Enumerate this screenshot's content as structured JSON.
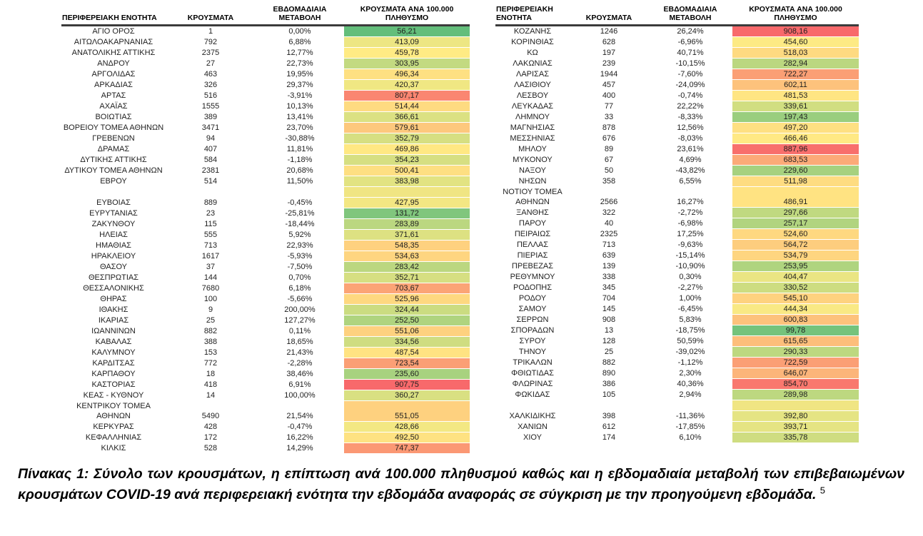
{
  "color_scale": {
    "min_value": 56.21,
    "mid_value": 459.78,
    "max_value": 908.16,
    "min_color": "#63BE7B",
    "mid_color": "#FFEB84",
    "max_color": "#F8696B",
    "blank_color": "#F0E583"
  },
  "left_table": {
    "headers": [
      "ΠΕΡΙΦΕΡΕΙΑΚΗ ΕΝΟΤΗΤΑ",
      "ΚΡΟΥΣΜΑΤΑ",
      "ΕΒΔΟΜΑΔΙΑΙΑ ΜΕΤΑΒΟΛΗ",
      "ΚΡΟΥΣΜΑΤΑ ΑΝΑ 100.000 ΠΛΗΘΥΣΜΟ"
    ],
    "rows": [
      {
        "name": "ΑΓΙΟ ΟΡΟΣ",
        "cases": "1",
        "change": "0,00%",
        "per100k": "56,21",
        "value": 56.21
      },
      {
        "name": "ΑΙΤΩΛΟΑΚΑΡΝΑΝΙΑΣ",
        "cases": "792",
        "change": "6,88%",
        "per100k": "413,09",
        "value": 413.09
      },
      {
        "name": "ΑΝΑΤΟΛΙΚΗΣ ΑΤΤΙΚΗΣ",
        "cases": "2375",
        "change": "12,77%",
        "per100k": "459,78",
        "value": 459.78
      },
      {
        "name": "ΑΝΔΡΟΥ",
        "cases": "27",
        "change": "22,73%",
        "per100k": "303,95",
        "value": 303.95
      },
      {
        "name": "ΑΡΓΟΛΙΔΑΣ",
        "cases": "463",
        "change": "19,95%",
        "per100k": "496,34",
        "value": 496.34
      },
      {
        "name": "ΑΡΚΑΔΙΑΣ",
        "cases": "326",
        "change": "29,37%",
        "per100k": "420,37",
        "value": 420.37
      },
      {
        "name": "ΑΡΤΑΣ",
        "cases": "516",
        "change": "-3,91%",
        "per100k": "807,17",
        "value": 807.17
      },
      {
        "name": "ΑΧΑΪΑΣ",
        "cases": "1555",
        "change": "10,13%",
        "per100k": "514,44",
        "value": 514.44
      },
      {
        "name": "ΒΟΙΩΤΙΑΣ",
        "cases": "389",
        "change": "13,41%",
        "per100k": "366,61",
        "value": 366.61
      },
      {
        "name": "ΒΟΡΕΙΟΥ ΤΟΜΕΑ ΑΘΗΝΩΝ",
        "cases": "3471",
        "change": "23,70%",
        "per100k": "579,61",
        "value": 579.61
      },
      {
        "name": "ΓΡΕΒΕΝΩΝ",
        "cases": "94",
        "change": "-30,88%",
        "per100k": "352,79",
        "value": 352.79
      },
      {
        "name": "ΔΡΑΜΑΣ",
        "cases": "407",
        "change": "11,81%",
        "per100k": "469,86",
        "value": 469.86
      },
      {
        "name": "ΔΥΤΙΚΗΣ ΑΤΤΙΚΗΣ",
        "cases": "584",
        "change": "-1,18%",
        "per100k": "354,23",
        "value": 354.23
      },
      {
        "name": "ΔΥΤΙΚΟΥ ΤΟΜΕΑ ΑΘΗΝΩΝ",
        "cases": "2381",
        "change": "20,68%",
        "per100k": "500,41",
        "value": 500.41
      },
      {
        "name": "ΕΒΡΟΥ",
        "cases": "514",
        "change": "11,50%",
        "per100k": "383,98",
        "value": 383.98
      },
      {
        "type": "blank"
      },
      {
        "name": "ΕΥΒΟΙΑΣ",
        "cases": "889",
        "change": "-0,45%",
        "per100k": "427,95",
        "value": 427.95
      },
      {
        "name": "ΕΥΡΥΤΑΝΙΑΣ",
        "cases": "23",
        "change": "-25,81%",
        "per100k": "131,72",
        "value": 131.72
      },
      {
        "name": "ΖΑΚΥΝΘΟΥ",
        "cases": "115",
        "change": "-18,44%",
        "per100k": "283,89",
        "value": 283.89
      },
      {
        "name": "ΗΛΕΙΑΣ",
        "cases": "555",
        "change": "5,92%",
        "per100k": "371,61",
        "value": 371.61
      },
      {
        "name": "ΗΜΑΘΙΑΣ",
        "cases": "713",
        "change": "22,93%",
        "per100k": "548,35",
        "value": 548.35
      },
      {
        "name": "ΗΡΑΚΛΕΙΟΥ",
        "cases": "1617",
        "change": "-5,93%",
        "per100k": "534,63",
        "value": 534.63
      },
      {
        "name": "ΘΑΣΟΥ",
        "cases": "37",
        "change": "-7,50%",
        "per100k": "283,42",
        "value": 283.42
      },
      {
        "name": "ΘΕΣΠΡΩΤΙΑΣ",
        "cases": "144",
        "change": "0,70%",
        "per100k": "352,71",
        "value": 352.71
      },
      {
        "name": "ΘΕΣΣΑΛΟΝΙΚΗΣ",
        "cases": "7680",
        "change": "6,18%",
        "per100k": "703,67",
        "value": 703.67
      },
      {
        "name": "ΘΗΡΑΣ",
        "cases": "100",
        "change": "-5,66%",
        "per100k": "525,96",
        "value": 525.96
      },
      {
        "name": "ΙΘΑΚΗΣ",
        "cases": "9",
        "change": "200,00%",
        "per100k": "324,44",
        "value": 324.44
      },
      {
        "name": "ΙΚΑΡΙΑΣ",
        "cases": "25",
        "change": "127,27%",
        "per100k": "252,50",
        "value": 252.5
      },
      {
        "name": "ΙΩΑΝΝΙΝΩΝ",
        "cases": "882",
        "change": "0,11%",
        "per100k": "551,06",
        "value": 551.06
      },
      {
        "name": "ΚΑΒΑΛΑΣ",
        "cases": "388",
        "change": "18,65%",
        "per100k": "334,56",
        "value": 334.56
      },
      {
        "name": "ΚΑΛΥΜΝΟΥ",
        "cases": "153",
        "change": "21,43%",
        "per100k": "487,54",
        "value": 487.54
      },
      {
        "name": "ΚΑΡΔΙΤΣΑΣ",
        "cases": "772",
        "change": "-2,28%",
        "per100k": "723,54",
        "value": 723.54
      },
      {
        "name": "ΚΑΡΠΑΘΟΥ",
        "cases": "18",
        "change": "38,46%",
        "per100k": "235,60",
        "value": 235.6
      },
      {
        "name": "ΚΑΣΤΟΡΙΑΣ",
        "cases": "418",
        "change": "6,91%",
        "per100k": "907,75",
        "value": 907.75
      },
      {
        "name": "ΚΕΑΣ - ΚΥΘΝΟΥ",
        "cases": "14",
        "change": "100,00%",
        "per100k": "360,27",
        "value": 360.27
      },
      {
        "type": "section",
        "name": "ΚΕΝΤΡΙΚΟΥ ΤΟΜΕΑ",
        "merge_value": 551.05
      },
      {
        "name": "ΑΘΗΝΩΝ",
        "cases": "5490",
        "change": "21,54%",
        "per100k": "551,05",
        "value": 551.05
      },
      {
        "name": "ΚΕΡΚΥΡΑΣ",
        "cases": "428",
        "change": "-0,47%",
        "per100k": "428,66",
        "value": 428.66
      },
      {
        "name": "ΚΕΦΑΛΛΗΝΙΑΣ",
        "cases": "172",
        "change": "16,22%",
        "per100k": "492,50",
        "value": 492.5
      },
      {
        "name": "ΚΙΛΚΙΣ",
        "cases": "528",
        "change": "14,29%",
        "per100k": "747,37",
        "value": 747.37
      }
    ]
  },
  "right_table": {
    "headers": [
      "ΠΕΡΙΦΕΡΕΙΑΚΗ ΕΝΟΤΗΤΑ",
      "ΚΡΟΥΣΜΑΤΑ",
      "ΕΒΔΟΜΑΔΙΑΙΑ ΜΕΤΑΒΟΛΗ",
      "ΚΡΟΥΣΜΑΤΑ ΑΝΑ 100.000 ΠΛΗΘΥΣΜΟ"
    ],
    "rows": [
      {
        "name": "ΚΟΖΑΝΗΣ",
        "cases": "1246",
        "change": "26,24%",
        "per100k": "908,16",
        "value": 908.16
      },
      {
        "name": "ΚΟΡΙΝΘΙΑΣ",
        "cases": "628",
        "change": "-6,96%",
        "per100k": "454,60",
        "value": 454.6
      },
      {
        "name": "ΚΩ",
        "cases": "197",
        "change": "40,71%",
        "per100k": "518,03",
        "value": 518.03
      },
      {
        "name": "ΛΑΚΩΝΙΑΣ",
        "cases": "239",
        "change": "-10,15%",
        "per100k": "282,94",
        "value": 282.94
      },
      {
        "name": "ΛΑΡΙΣΑΣ",
        "cases": "1944",
        "change": "-7,60%",
        "per100k": "722,27",
        "value": 722.27
      },
      {
        "name": "ΛΑΣΙΘΙΟΥ",
        "cases": "457",
        "change": "-24,09%",
        "per100k": "602,11",
        "value": 602.11
      },
      {
        "name": "ΛΕΣΒΟΥ",
        "cases": "400",
        "change": "-0,74%",
        "per100k": "481,53",
        "value": 481.53
      },
      {
        "name": "ΛΕΥΚΑΔΑΣ",
        "cases": "77",
        "change": "22,22%",
        "per100k": "339,61",
        "value": 339.61
      },
      {
        "name": "ΛΗΜΝΟΥ",
        "cases": "33",
        "change": "-8,33%",
        "per100k": "197,43",
        "value": 197.43
      },
      {
        "name": "ΜΑΓΝΗΣΙΑΣ",
        "cases": "878",
        "change": "12,56%",
        "per100k": "497,20",
        "value": 497.2
      },
      {
        "name": "ΜΕΣΣΗΝΙΑΣ",
        "cases": "676",
        "change": "-8,03%",
        "per100k": "466,46",
        "value": 466.46
      },
      {
        "name": "ΜΗΛΟΥ",
        "cases": "89",
        "change": "23,61%",
        "per100k": "887,96",
        "value": 887.96
      },
      {
        "name": "ΜΥΚΟΝΟΥ",
        "cases": "67",
        "change": "4,69%",
        "per100k": "683,53",
        "value": 683.53
      },
      {
        "name": "ΝΑΞΟΥ",
        "cases": "50",
        "change": "-43,82%",
        "per100k": "229,60",
        "value": 229.6
      },
      {
        "name": "ΝΗΣΩΝ",
        "cases": "358",
        "change": "6,55%",
        "per100k": "511,98",
        "value": 511.98
      },
      {
        "type": "section",
        "name": "ΝΟΤΙΟΥ ΤΟΜΕΑ",
        "merge_value": 486.91
      },
      {
        "name": "ΑΘΗΝΩΝ",
        "cases": "2566",
        "change": "16,27%",
        "per100k": "486,91",
        "value": 486.91
      },
      {
        "name": "ΞΑΝΘΗΣ",
        "cases": "322",
        "change": "-2,72%",
        "per100k": "297,66",
        "value": 297.66
      },
      {
        "name": "ΠΑΡΟΥ",
        "cases": "40",
        "change": "-6,98%",
        "per100k": "257,17",
        "value": 257.17
      },
      {
        "name": "ΠΕΙΡΑΙΩΣ",
        "cases": "2325",
        "change": "17,25%",
        "per100k": "524,60",
        "value": 524.6
      },
      {
        "name": "ΠΕΛΛΑΣ",
        "cases": "713",
        "change": "-9,63%",
        "per100k": "564,72",
        "value": 564.72
      },
      {
        "name": "ΠΙΕΡΙΑΣ",
        "cases": "639",
        "change": "-15,14%",
        "per100k": "534,79",
        "value": 534.79
      },
      {
        "name": "ΠΡΕΒΕΖΑΣ",
        "cases": "139",
        "change": "-10,90%",
        "per100k": "253,95",
        "value": 253.95
      },
      {
        "name": "ΡΕΘΥΜΝΟΥ",
        "cases": "338",
        "change": "0,30%",
        "per100k": "404,47",
        "value": 404.47
      },
      {
        "name": "ΡΟΔΟΠΗΣ",
        "cases": "345",
        "change": "-2,27%",
        "per100k": "330,52",
        "value": 330.52
      },
      {
        "name": "ΡΟΔΟΥ",
        "cases": "704",
        "change": "1,00%",
        "per100k": "545,10",
        "value": 545.1
      },
      {
        "name": "ΣΑΜΟΥ",
        "cases": "145",
        "change": "-6,45%",
        "per100k": "444,34",
        "value": 444.34
      },
      {
        "name": "ΣΕΡΡΩΝ",
        "cases": "908",
        "change": "5,83%",
        "per100k": "600,83",
        "value": 600.83
      },
      {
        "name": "ΣΠΟΡΑΔΩΝ",
        "cases": "13",
        "change": "-18,75%",
        "per100k": "99,78",
        "value": 99.78
      },
      {
        "name": "ΣΥΡΟΥ",
        "cases": "128",
        "change": "50,59%",
        "per100k": "615,65",
        "value": 615.65
      },
      {
        "name": "ΤΗΝΟΥ",
        "cases": "25",
        "change": "-39,02%",
        "per100k": "290,33",
        "value": 290.33
      },
      {
        "name": "ΤΡΙΚΑΛΩΝ",
        "cases": "882",
        "change": "-1,12%",
        "per100k": "722,59",
        "value": 722.59
      },
      {
        "name": "ΦΘΙΩΤΙΔΑΣ",
        "cases": "890",
        "change": "2,30%",
        "per100k": "646,07",
        "value": 646.07
      },
      {
        "name": "ΦΛΩΡΙΝΑΣ",
        "cases": "386",
        "change": "40,36%",
        "per100k": "854,70",
        "value": 854.7
      },
      {
        "name": "ΦΩΚΙΔΑΣ",
        "cases": "105",
        "change": "2,94%",
        "per100k": "289,98",
        "value": 289.98
      },
      {
        "type": "blank"
      },
      {
        "name": "ΧΑΛΚΙΔΙΚΗΣ",
        "cases": "398",
        "change": "-11,36%",
        "per100k": "392,80",
        "value": 392.8
      },
      {
        "name": "ΧΑΝΙΩΝ",
        "cases": "612",
        "change": "-17,85%",
        "per100k": "393,71",
        "value": 393.71
      },
      {
        "name": "ΧΙΟΥ",
        "cases": "174",
        "change": "6,10%",
        "per100k": "335,78",
        "value": 335.78
      }
    ]
  },
  "caption": {
    "label": "Πίνακας 1:",
    "text": "Σύνολο των κρουσμάτων, η επίπτωση ανά 100.000 πληθυσμού καθώς και η εβδομαδιαία μεταβολή των επιβεβαιωμένων κρουσμάτων COVID-19 ανά περιφερειακή ενότητα την εβδομάδα αναφοράς σε σύγκριση με την προηγούμενη εβδομάδα.",
    "footnote": "5"
  }
}
